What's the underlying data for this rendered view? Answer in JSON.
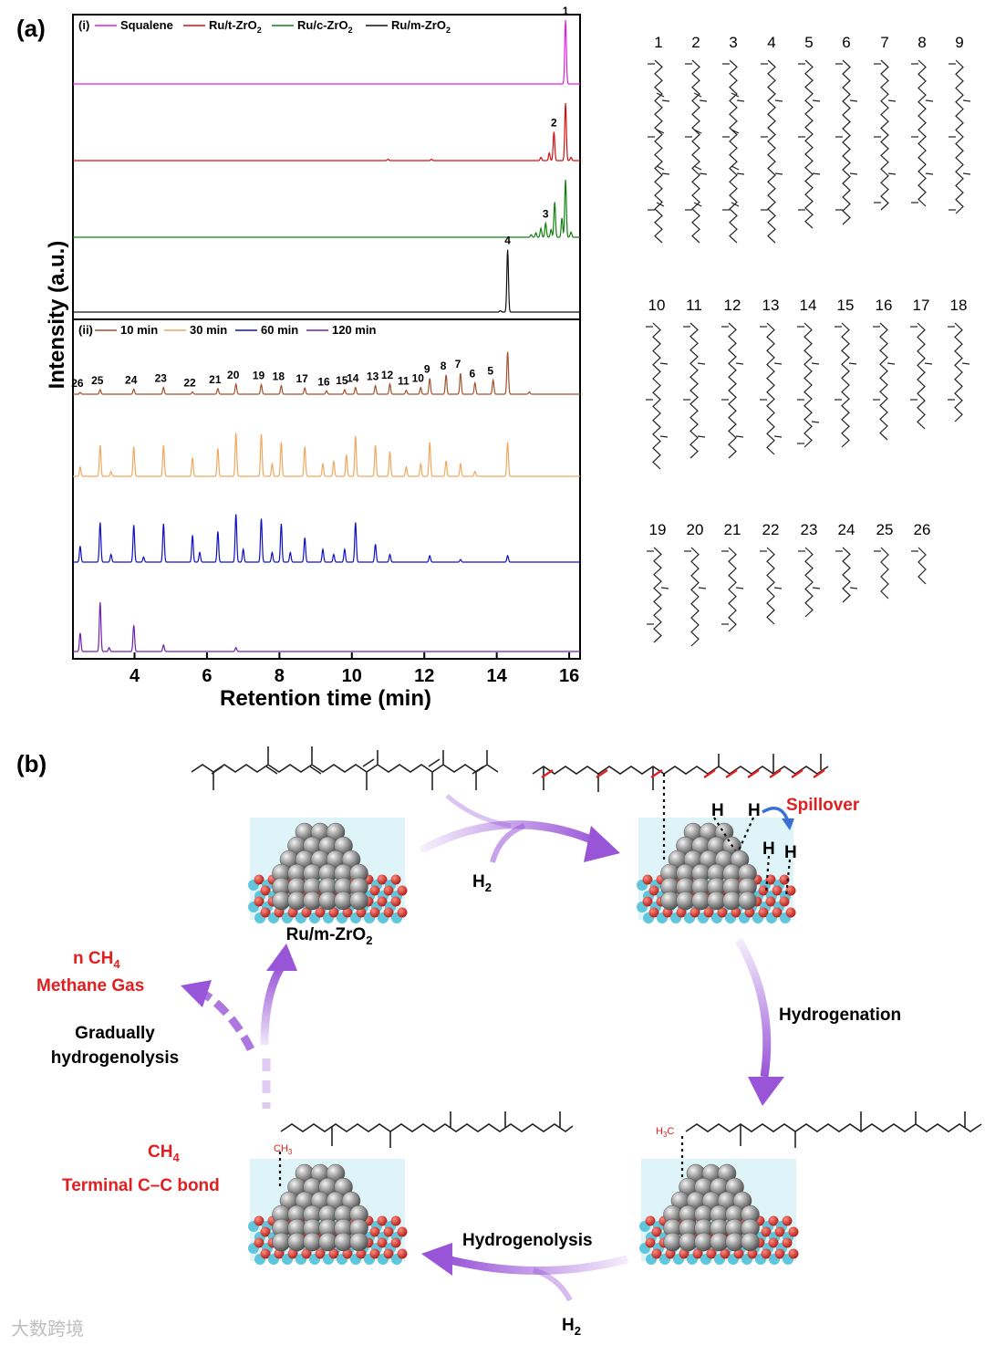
{
  "panel_a_label": "(a)",
  "panel_b_label": "(b)",
  "chart_data": {
    "type": "line",
    "title": "",
    "xlabel": "Retention time (min)",
    "ylabel": "Intensity (a.u.)",
    "xlim": [
      2.3,
      16.3
    ],
    "xticks": [
      "4",
      "6",
      "8",
      "10",
      "12",
      "14",
      "16"
    ],
    "xtick_values": [
      4,
      6,
      8,
      10,
      12,
      14,
      16
    ],
    "subpanels": [
      {
        "label": "(i)",
        "legend": [
          "Squalene",
          "Ru/t-ZrO2",
          "Ru/c-ZrO2",
          "Ru/m-ZrO2"
        ],
        "series": [
          {
            "name": "Squalene",
            "color": "#e020e0",
            "peaks": [
              [
                15.9,
                1.0
              ]
            ]
          },
          {
            "name": "Ru/t-ZrO2",
            "color": "#d01010",
            "peaks": [
              [
                15.22,
                0.05
              ],
              [
                15.45,
                0.12
              ],
              [
                15.58,
                0.45
              ],
              [
                15.9,
                0.9
              ],
              [
                16.05,
                0.05
              ],
              [
                11.0,
                0.02
              ],
              [
                12.2,
                0.02
              ]
            ]
          },
          {
            "name": "Ru/c-ZrO2",
            "color": "#108010",
            "peaks": [
              [
                14.95,
                0.04
              ],
              [
                15.08,
                0.07
              ],
              [
                15.22,
                0.14
              ],
              [
                15.35,
                0.22
              ],
              [
                15.5,
                0.12
              ],
              [
                15.6,
                0.55
              ],
              [
                15.8,
                0.3
              ],
              [
                15.9,
                0.9
              ],
              [
                16.05,
                0.08
              ]
            ]
          },
          {
            "name": "Ru/m-ZrO2",
            "color": "#111111",
            "peaks": [
              [
                14.3,
                0.95
              ],
              [
                14.1,
                0.02
              ]
            ]
          }
        ],
        "peak_labels": [
          {
            "text": "1",
            "x": 15.9,
            "series": 0
          },
          {
            "text": "2",
            "x": 15.58,
            "series": 1
          },
          {
            "text": "3",
            "x": 15.35,
            "series": 2
          },
          {
            "text": "4",
            "x": 14.3,
            "series": 3
          }
        ]
      },
      {
        "label": "(ii)",
        "legend": [
          "10 min",
          "30 min",
          "60 min",
          "120 min"
        ],
        "series": [
          {
            "name": "10 min",
            "color": "#a0522d",
            "peaks": [
              [
                2.5,
                0.03
              ],
              [
                3.05,
                0.08
              ],
              [
                3.98,
                0.09
              ],
              [
                4.8,
                0.12
              ],
              [
                5.6,
                0.04
              ],
              [
                6.3,
                0.1
              ],
              [
                6.8,
                0.18
              ],
              [
                7.5,
                0.17
              ],
              [
                8.05,
                0.15
              ],
              [
                8.7,
                0.11
              ],
              [
                9.3,
                0.06
              ],
              [
                9.8,
                0.08
              ],
              [
                10.1,
                0.12
              ],
              [
                10.65,
                0.15
              ],
              [
                11.05,
                0.18
              ],
              [
                11.5,
                0.07
              ],
              [
                11.9,
                0.12
              ],
              [
                12.15,
                0.28
              ],
              [
                12.6,
                0.34
              ],
              [
                13.0,
                0.37
              ],
              [
                13.4,
                0.2
              ],
              [
                13.9,
                0.25
              ],
              [
                14.3,
                0.75
              ],
              [
                14.9,
                0.04
              ]
            ]
          },
          {
            "name": "30 min",
            "color": "#f0a860",
            "peaks": [
              [
                2.5,
                0.15
              ],
              [
                3.05,
                0.5
              ],
              [
                3.35,
                0.08
              ],
              [
                3.98,
                0.48
              ],
              [
                4.8,
                0.5
              ],
              [
                5.6,
                0.3
              ],
              [
                6.3,
                0.45
              ],
              [
                6.8,
                0.7
              ],
              [
                7.5,
                0.68
              ],
              [
                7.8,
                0.2
              ],
              [
                8.05,
                0.55
              ],
              [
                8.7,
                0.48
              ],
              [
                9.2,
                0.2
              ],
              [
                9.5,
                0.25
              ],
              [
                9.85,
                0.35
              ],
              [
                10.1,
                0.65
              ],
              [
                10.65,
                0.5
              ],
              [
                11.05,
                0.4
              ],
              [
                11.5,
                0.15
              ],
              [
                11.9,
                0.2
              ],
              [
                12.15,
                0.55
              ],
              [
                12.6,
                0.25
              ],
              [
                13.0,
                0.2
              ],
              [
                13.4,
                0.08
              ],
              [
                14.3,
                0.55
              ]
            ]
          },
          {
            "name": "60 min",
            "color": "#1010c0",
            "peaks": [
              [
                2.5,
                0.25
              ],
              [
                3.05,
                0.62
              ],
              [
                3.35,
                0.12
              ],
              [
                3.98,
                0.58
              ],
              [
                4.25,
                0.08
              ],
              [
                4.8,
                0.6
              ],
              [
                5.6,
                0.42
              ],
              [
                5.8,
                0.15
              ],
              [
                6.3,
                0.48
              ],
              [
                6.8,
                0.75
              ],
              [
                7.0,
                0.2
              ],
              [
                7.5,
                0.68
              ],
              [
                7.8,
                0.15
              ],
              [
                8.05,
                0.6
              ],
              [
                8.3,
                0.15
              ],
              [
                8.7,
                0.38
              ],
              [
                9.2,
                0.2
              ],
              [
                9.5,
                0.12
              ],
              [
                9.8,
                0.2
              ],
              [
                10.1,
                0.62
              ],
              [
                10.65,
                0.28
              ],
              [
                11.05,
                0.12
              ],
              [
                12.15,
                0.1
              ],
              [
                13.0,
                0.04
              ],
              [
                14.3,
                0.1
              ]
            ]
          },
          {
            "name": "120 min",
            "color": "#7020b0",
            "peaks": [
              [
                2.5,
                0.28
              ],
              [
                3.05,
                0.75
              ],
              [
                3.3,
                0.06
              ],
              [
                3.98,
                0.4
              ],
              [
                4.8,
                0.1
              ],
              [
                6.8,
                0.06
              ]
            ]
          }
        ],
        "peak_labels": [
          {
            "text": "26",
            "x": 2.5
          },
          {
            "text": "25",
            "x": 3.05
          },
          {
            "text": "24",
            "x": 3.98
          },
          {
            "text": "23",
            "x": 4.8
          },
          {
            "text": "22",
            "x": 5.6
          },
          {
            "text": "21",
            "x": 6.3
          },
          {
            "text": "20",
            "x": 6.8
          },
          {
            "text": "19",
            "x": 7.5
          },
          {
            "text": "18",
            "x": 8.05
          },
          {
            "text": "17",
            "x": 8.7
          },
          {
            "text": "16",
            "x": 9.3
          },
          {
            "text": "15",
            "x": 9.8
          },
          {
            "text": "14",
            "x": 10.1
          },
          {
            "text": "13",
            "x": 10.65
          },
          {
            "text": "12",
            "x": 11.05
          },
          {
            "text": "11",
            "x": 11.5
          },
          {
            "text": "10",
            "x": 11.9
          },
          {
            "text": "9",
            "x": 12.15
          },
          {
            "text": "8",
            "x": 12.6
          },
          {
            "text": "7",
            "x": 13.0
          },
          {
            "text": "6",
            "x": 13.4
          },
          {
            "text": "5",
            "x": 13.9
          }
        ]
      }
    ]
  },
  "compounds": [
    {
      "label": "1",
      "len": 5.0,
      "branches": [
        0.0,
        1.0,
        2.0,
        3.0,
        4.0
      ]
    },
    {
      "label": "2",
      "len": 5.0,
      "branches": [
        0.0,
        1.0,
        2.0,
        3.0,
        4.0
      ]
    },
    {
      "label": "3",
      "len": 5.0,
      "branches": [
        0.0,
        1.0,
        2.0,
        3.0,
        4.0
      ]
    },
    {
      "label": "4",
      "len": 5.0,
      "branches": [
        0.0,
        1.0,
        2.0,
        3.0,
        4.0
      ]
    },
    {
      "label": "5",
      "len": 4.6,
      "branches": [
        0.0,
        1.0,
        2.0,
        3.0,
        4.0
      ]
    },
    {
      "label": "6",
      "len": 4.5,
      "branches": [
        0.0,
        1.0,
        2.0,
        3.0,
        4.0
      ]
    },
    {
      "label": "7",
      "len": 4.1,
      "branches": [
        0.0,
        1.0,
        2.0,
        3.0,
        3.8
      ]
    },
    {
      "label": "8",
      "len": 4.0,
      "branches": [
        0.0,
        1.0,
        2.0,
        3.0,
        3.8
      ]
    },
    {
      "label": "9",
      "len": 4.2,
      "branches": [
        0.0,
        1.0,
        2.0,
        3.0,
        4.0
      ]
    },
    {
      "label": "10",
      "len": 4.0,
      "branches": [
        0.0,
        1.0,
        2.0,
        3.0
      ]
    },
    {
      "label": "11",
      "len": 3.7,
      "branches": [
        0.0,
        1.0,
        2.0,
        3.0
      ]
    },
    {
      "label": "12",
      "len": 3.7,
      "branches": [
        0.0,
        1.0,
        2.0,
        3.0
      ]
    },
    {
      "label": "13",
      "len": 3.6,
      "branches": [
        0.0,
        1.0,
        2.0,
        3.0
      ]
    },
    {
      "label": "14",
      "len": 3.4,
      "branches": [
        0.0,
        1.0,
        2.0,
        2.6,
        3.2
      ]
    },
    {
      "label": "15",
      "len": 3.4,
      "branches": [
        0.0,
        1.0,
        2.0
      ]
    },
    {
      "label": "16",
      "len": 3.2,
      "branches": [
        0.0,
        1.0,
        2.0
      ]
    },
    {
      "label": "17",
      "len": 2.9,
      "branches": [
        0.0,
        1.0,
        2.0
      ]
    },
    {
      "label": "18",
      "len": 2.7,
      "branches": [
        0.0,
        1.0,
        2.0
      ]
    },
    {
      "label": "19",
      "len": 2.6,
      "branches": [
        0.0,
        1.0,
        2.0
      ]
    },
    {
      "label": "20",
      "len": 2.7,
      "branches": [
        0.0,
        1.0
      ]
    },
    {
      "label": "21",
      "len": 2.3,
      "branches": [
        0.0,
        1.0,
        2.0
      ]
    },
    {
      "label": "22",
      "len": 2.1,
      "branches": [
        0.0,
        1.0
      ]
    },
    {
      "label": "23",
      "len": 1.9,
      "branches": [
        0.0,
        1.0
      ]
    },
    {
      "label": "24",
      "len": 1.5,
      "branches": [
        0.0,
        1.0
      ]
    },
    {
      "label": "25",
      "len": 1.4,
      "branches": [
        0.0
      ]
    },
    {
      "label": "26",
      "len": 1.0,
      "branches": [
        0.0
      ]
    }
  ],
  "scheme": {
    "catalyst": "Ru/m-ZrO2",
    "h2": "H2",
    "h_atom": "H",
    "spillover": "Spillover",
    "hydrogenation": "Hydrogenation",
    "hydrogenolysis": "Hydrogenolysis",
    "ch3": "CH3",
    "h3c": "H3C",
    "ch4": "CH4",
    "terminal_bond": "Terminal C–C bond",
    "n_ch4": "n CH4",
    "methane_gas": "Methane Gas",
    "gradually_1": "Gradually",
    "gradually_2": "hydrogenolysis"
  },
  "colors": {
    "red_text": "#e02020",
    "arrow": "#9955d8",
    "spill_arrow": "#3a6fd8",
    "zro2_blue": "#5fc6dc",
    "oxygen_red": "#d8342c",
    "ru_gray": "#8e8e8e"
  },
  "watermark": "大数跨境"
}
